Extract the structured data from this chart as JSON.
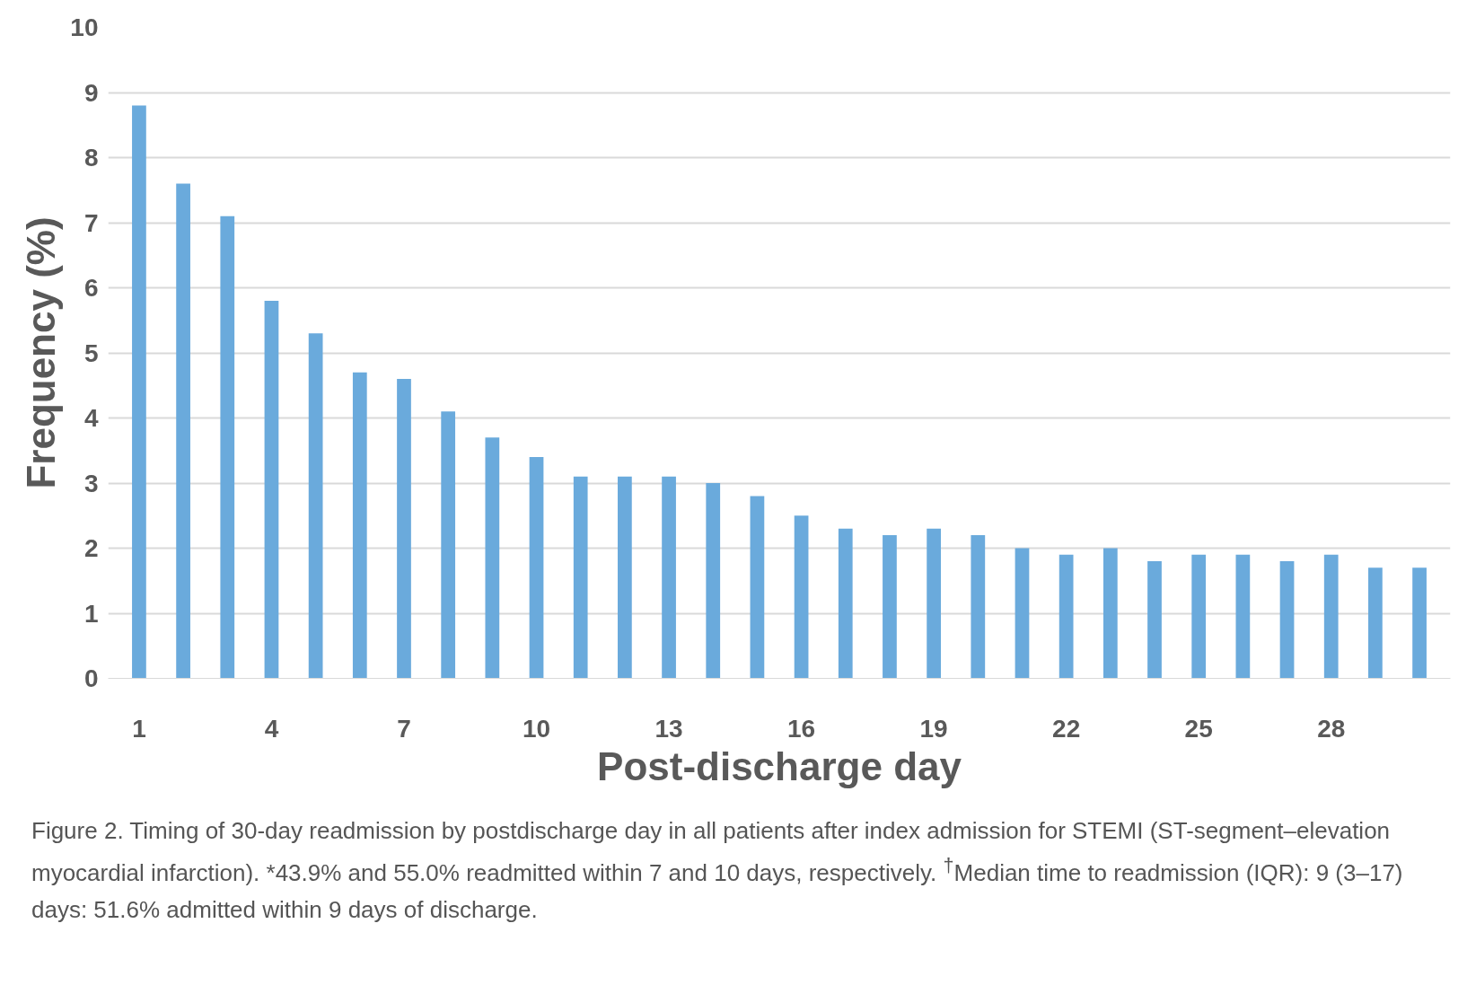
{
  "chart_data": {
    "type": "bar",
    "xlabel": "Post-discharge day",
    "ylabel": "Frequency (%)",
    "categories": [
      "1",
      null,
      null,
      "4",
      null,
      null,
      "7",
      null,
      null,
      "10",
      null,
      null,
      "13",
      null,
      null,
      "16",
      null,
      null,
      "19",
      null,
      null,
      "22",
      null,
      null,
      "25",
      null,
      null,
      "28",
      null,
      null
    ],
    "values": [
      8.8,
      7.6,
      7.1,
      5.8,
      5.3,
      4.7,
      4.6,
      4.1,
      3.7,
      3.4,
      3.1,
      3.1,
      3.1,
      3.0,
      2.8,
      2.5,
      2.3,
      2.2,
      2.3,
      2.2,
      2.0,
      1.9,
      2.0,
      1.8,
      1.9,
      1.9,
      1.8,
      1.9,
      1.7,
      1.7
    ],
    "color": "#6aaadc",
    "ylim": [
      0,
      10
    ],
    "yticks": [
      0,
      1,
      2,
      3,
      4,
      5,
      6,
      7,
      8,
      9,
      10
    ],
    "grid": "y",
    "annotations": [
      "Figure 2. Timing of 30-day readmission by postdischarge day in all patients after index admission for STEMI (ST-segment–elevation myocardial infarction). *43.9% and 55.0% readmitted within 7 and 10 days, respectively. $^{†}$Median time to readmission (IQR): 9 (3–17) days: 51.6% admitted within 9 days of discharge."
    ]
  }
}
